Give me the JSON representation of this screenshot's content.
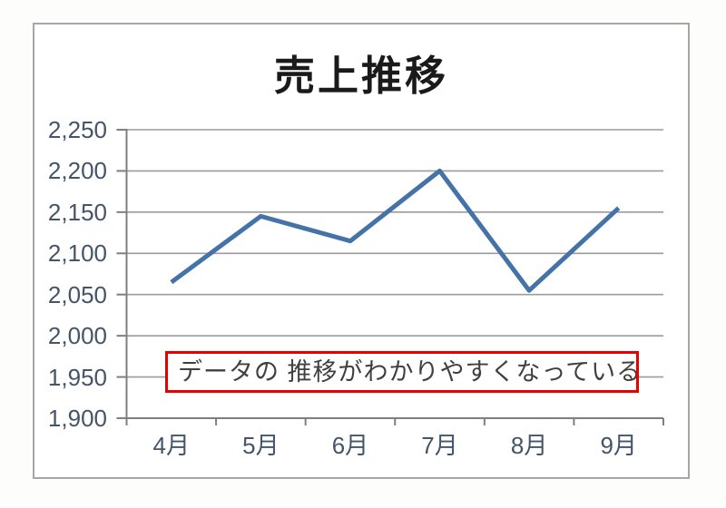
{
  "chart_data": {
    "type": "line",
    "title": "売上推移",
    "categories": [
      "4月",
      "5月",
      "6月",
      "7月",
      "8月",
      "9月"
    ],
    "values": [
      2065,
      2145,
      2115,
      2200,
      2055,
      2155
    ],
    "xlabel": "",
    "ylabel": "",
    "ylim": [
      1900,
      2250
    ],
    "ytick_step": 50,
    "ytick_labels_top_to_bottom": [
      "2,250",
      "2,200",
      "2,150",
      "2,100",
      "2,050",
      "2,000",
      "1,950",
      "1,900"
    ],
    "grid": true,
    "legend": false,
    "markers": false,
    "annotation": {
      "text": "データの 推移がわかりやすくなっている",
      "border_color": "#E60000"
    },
    "colors": {
      "line": "#4572A7",
      "gridline": "#9B9B9B",
      "axis": "#7F7F7F",
      "tick_label": "#44546A",
      "title": "#1A1A1A",
      "annotation_text": "#404040",
      "frame_border": "#A6A6A6",
      "chart_background": "#FFFFFF"
    }
  }
}
